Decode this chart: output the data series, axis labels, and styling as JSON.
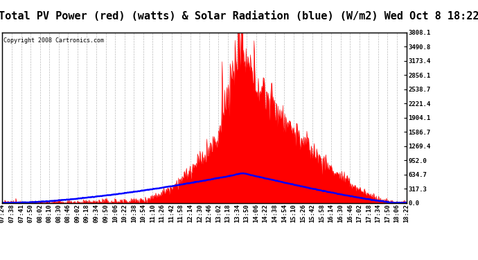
{
  "title": "Total PV Power (red) (watts) & Solar Radiation (blue) (W/m2) Wed Oct 8 18:22",
  "copyright": "Copyright 2008 Cartronics.com",
  "ymin": 0.0,
  "ymax": 3808.1,
  "yticks": [
    0.0,
    317.3,
    634.7,
    952.0,
    1269.4,
    1586.7,
    1904.1,
    2221.4,
    2538.7,
    2856.1,
    3173.4,
    3490.8,
    3808.1
  ],
  "xtick_labels": [
    "07:24",
    "07:38",
    "07:41",
    "07:50",
    "08:02",
    "08:10",
    "08:30",
    "08:46",
    "09:02",
    "09:18",
    "09:34",
    "09:50",
    "10:06",
    "10:22",
    "10:38",
    "10:54",
    "11:10",
    "11:26",
    "11:42",
    "11:58",
    "12:14",
    "12:30",
    "12:46",
    "13:02",
    "13:18",
    "13:34",
    "13:50",
    "14:06",
    "14:22",
    "14:38",
    "14:54",
    "15:10",
    "15:26",
    "15:42",
    "15:58",
    "16:14",
    "16:30",
    "16:46",
    "17:02",
    "17:18",
    "17:34",
    "17:50",
    "18:06",
    "18:22"
  ],
  "bg_color": "#ffffff",
  "plot_bg_color": "#ffffff",
  "grid_color": "#aaaaaa",
  "title_bg": "#cccccc",
  "pv_color": "#ff0000",
  "solar_color": "#0000ff",
  "title_fontsize": 11,
  "tick_fontsize": 6.5,
  "copyright_fontsize": 6
}
